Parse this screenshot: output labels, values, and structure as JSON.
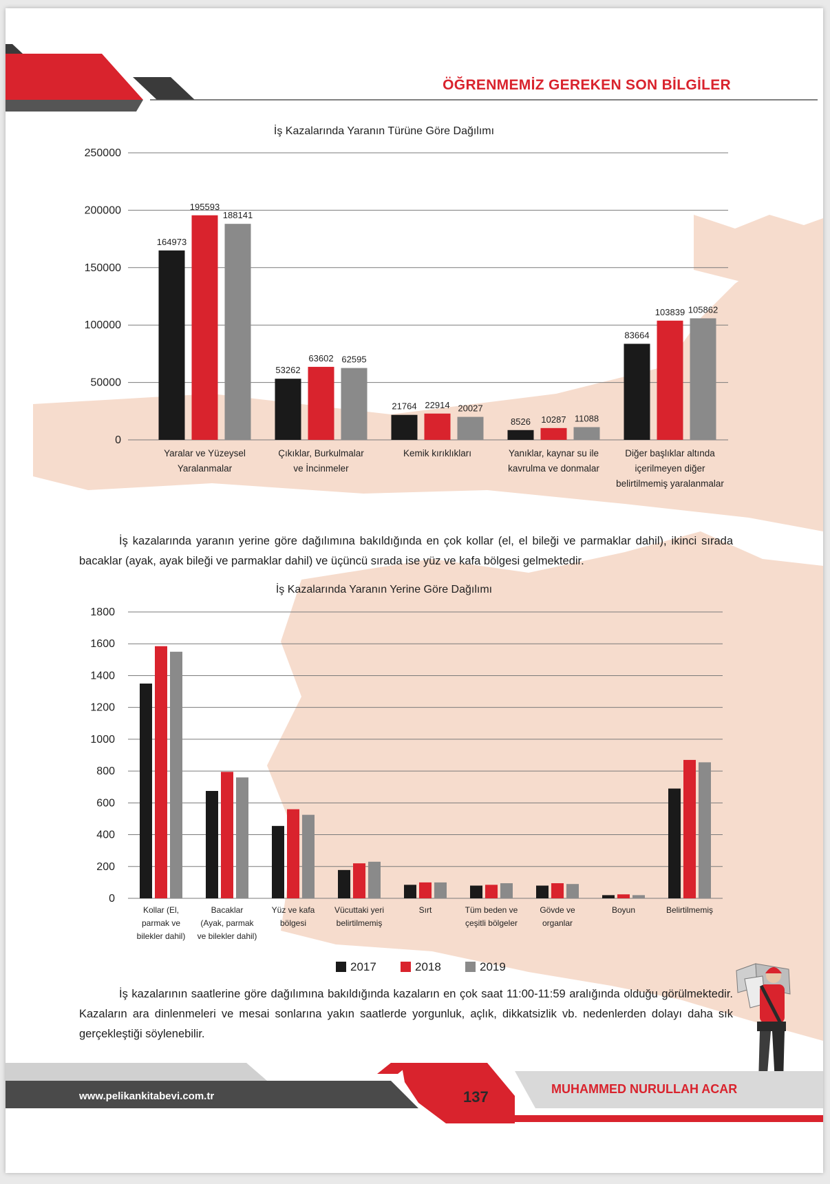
{
  "header": {
    "title": "ÖĞRENMEMİZ GEREKEN SON BİLGİLER"
  },
  "colors": {
    "y2017": "#1a1a1a",
    "y2018": "#d9232d",
    "y2019": "#8a8a8a",
    "accent": "#d9232d",
    "splash": "#f6dccd"
  },
  "chart_data": [
    {
      "type": "bar",
      "title": "İş Kazalarında Yaranın Türüne Göre Dağılımı",
      "categories": [
        [
          "Yaralar ve Yüzeysel",
          "Yaralanmalar"
        ],
        [
          "Çıkıklar, Burkulmalar",
          "ve İncinmeler"
        ],
        [
          "Kemik kırıklıkları"
        ],
        [
          "Yanıklar, kaynar su ile",
          "kavrulma ve donmalar"
        ],
        [
          "Diğer başlıklar altında",
          "içerilmeyen diğer",
          "belirtilmemiş yaralanmalar"
        ]
      ],
      "series": [
        {
          "name": "2017",
          "values": [
            164973,
            53262,
            21764,
            8526,
            83664
          ]
        },
        {
          "name": "2018",
          "values": [
            195593,
            63602,
            22914,
            10287,
            103839
          ]
        },
        {
          "name": "2019",
          "values": [
            188141,
            62595,
            20027,
            11088,
            105862
          ]
        }
      ],
      "ylim": [
        0,
        250000
      ],
      "yticks": [
        "0",
        "50000",
        "100000",
        "150000",
        "200000",
        "250000"
      ],
      "data_labels": true,
      "legend": "bottom",
      "grid": true
    },
    {
      "type": "bar",
      "title": "İş Kazalarında Yaranın Yerine Göre Dağılımı",
      "categories": [
        [
          "Kollar (El,",
          "parmak ve",
          "bilekler dahil)"
        ],
        [
          "Bacaklar",
          "(Ayak, parmak",
          "ve bilekler dahil)"
        ],
        [
          "Yüz ve kafa",
          "bölgesi"
        ],
        [
          "Vücuttaki yeri",
          "belirtilmemiş"
        ],
        [
          "Sırt"
        ],
        [
          "Tüm beden ve",
          "çeşitli bölgeler"
        ],
        [
          "Gövde ve",
          "organlar"
        ],
        [
          "Boyun"
        ],
        [
          "Belirtilmemiş"
        ]
      ],
      "series": [
        {
          "name": "2017",
          "values": [
            1350,
            675,
            455,
            178,
            85,
            80,
            80,
            20,
            690
          ]
        },
        {
          "name": "2018",
          "values": [
            1585,
            795,
            560,
            220,
            100,
            85,
            95,
            25,
            870
          ]
        },
        {
          "name": "2019",
          "values": [
            1550,
            760,
            525,
            230,
            100,
            95,
            90,
            20,
            855
          ]
        }
      ],
      "ylim": [
        0,
        1800
      ],
      "yticks": [
        "0",
        "200",
        "400",
        "600",
        "800",
        "1000",
        "1200",
        "1400",
        "1600",
        "1800"
      ],
      "data_labels": false,
      "legend": "bottom",
      "grid": true
    }
  ],
  "paragraphs": {
    "p1": "İş kazalarında yaranın yerine göre dağılımına bakıldığında en çok kollar (el, el bileği ve parmaklar dahil), ikinci sırada bacaklar (ayak, ayak bileği ve parmaklar dahil) ve üçüncü sırada ise yüz ve kafa bölgesi gelmektedir.",
    "p2": "İş kazalarının saatlerine göre dağılımına bakıldığında kazaların en çok saat 11:00-11:59 aralığında olduğu görülmektedir. Kazaların ara dinlenmeleri ve mesai sonlarına yakın saatlerde yorgunluk, açlık, dikkatsizlik vb. nedenlerden dolayı daha sık gerçekleştiği söylenebilir."
  },
  "footer": {
    "url": "www.pelikankitabevi.com.tr",
    "page_number": "137",
    "author": "MUHAMMED NURULLAH ACAR"
  },
  "illustration": {
    "icon": "worker-reading-map-icon"
  }
}
